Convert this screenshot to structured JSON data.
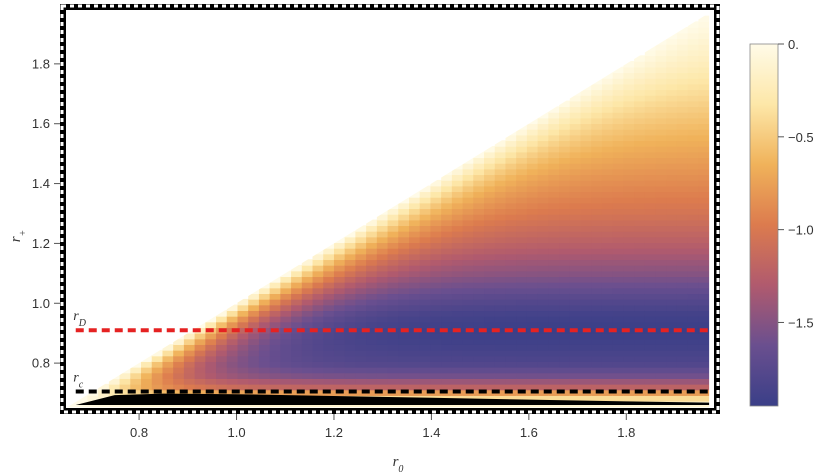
{
  "chart_data": {
    "type": "heatmap",
    "title": "",
    "xlabel": "r_0",
    "ylabel": "r_+",
    "xlim": [
      0.65,
      1.98
    ],
    "ylim": [
      0.65,
      1.98
    ],
    "x_ticks": [
      0.8,
      1.0,
      1.2,
      1.4,
      1.6,
      1.8
    ],
    "x_tick_labels": [
      "0.8",
      "1.0",
      "1.2",
      "1.4",
      "1.6",
      "1.8"
    ],
    "y_ticks": [
      0.8,
      1.0,
      1.2,
      1.4,
      1.6,
      1.8
    ],
    "y_tick_labels": [
      "0.8",
      "1.0",
      "1.2",
      "1.4",
      "1.6",
      "1.8"
    ],
    "domain": "filled where r_+ <= r_0 (lower-right triangle), region above diagonal blank",
    "colorbar": {
      "min": -1.95,
      "max": 0.0,
      "ticks": [
        0.0,
        -0.5,
        -1.0,
        -1.5
      ],
      "tick_labels": [
        "0.",
        "−0.5",
        "−1.0",
        "−1.5"
      ],
      "colors": [
        "#3a3f88",
        "#6a4f8f",
        "#b05a6e",
        "#dc7b4e",
        "#f0b25a",
        "#fde7a8",
        "#fffbe8"
      ]
    },
    "value_profile_along_r_plus": {
      "r_plus": [
        0.66,
        0.69,
        0.72,
        0.76,
        0.8,
        0.86,
        0.91,
        0.96,
        1.02,
        1.1,
        1.2,
        1.3,
        1.4,
        1.5,
        1.6,
        1.7,
        1.8,
        1.9,
        1.98
      ],
      "value_far_from_diagonal": [
        -0.05,
        -0.5,
        -1.2,
        -1.6,
        -1.8,
        -1.9,
        -1.95,
        -1.9,
        -1.75,
        -1.5,
        -1.25,
        -1.05,
        -0.9,
        -0.75,
        -0.6,
        -0.45,
        -0.3,
        -0.18,
        -0.1
      ]
    },
    "lines": [
      {
        "label": "r_D",
        "y": 0.91,
        "color": "#e52222",
        "style": "dashed"
      },
      {
        "label": "r_c",
        "y": 0.705,
        "color": "#000000",
        "style": "dashed"
      }
    ],
    "black_region": {
      "description": "solid black sliver near bottom",
      "x": [
        0.67,
        0.75,
        0.85,
        1.0,
        1.2,
        1.4,
        1.6,
        1.8,
        1.97
      ],
      "upper_y": [
        0.66,
        0.693,
        0.698,
        0.696,
        0.69,
        0.684,
        0.678,
        0.672,
        0.668
      ],
      "lower_y": 0.66
    },
    "grid": false
  }
}
